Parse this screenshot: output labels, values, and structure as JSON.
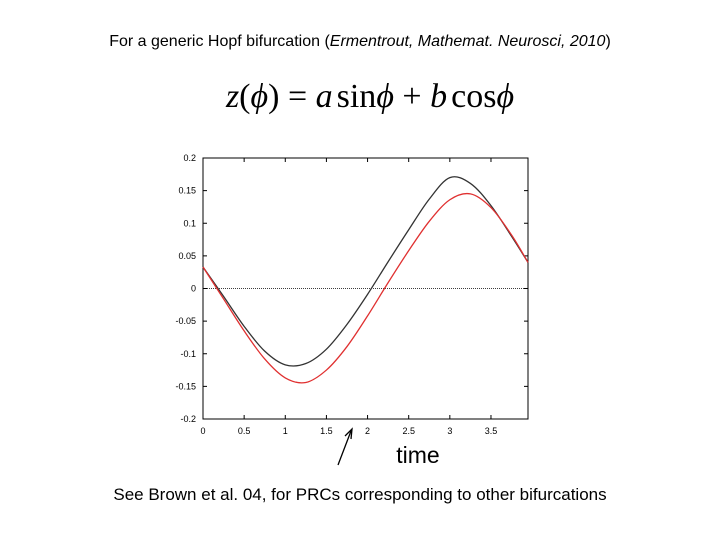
{
  "header": {
    "pre": "For a generic Hopf bifurcation (",
    "citation": "Ermentrout, Mathemat. Neurosci, 2010",
    "post": ")"
  },
  "formula": {
    "z": "z",
    "phi": "ϕ",
    "a": "a",
    "sin": "sin",
    "b": "b",
    "cos": "cos",
    "lparen": "(",
    "rparen": ")",
    "equals": " = ",
    "plus": " + "
  },
  "footer": "See Brown et al. 04, for PRCs corresponding to other bifurcations",
  "chart_data": {
    "type": "line",
    "xlabel": "time",
    "ylabel": "",
    "title": "",
    "xlim": [
      0,
      3.95
    ],
    "ylim": [
      -0.2,
      0.2
    ],
    "xticks": [
      "0",
      "0.5",
      "1",
      "1.5",
      "2",
      "2.5",
      "3",
      "3.5"
    ],
    "yticks": [
      "0.2",
      "0.15",
      "0.1",
      "0.05",
      "0",
      "-0.05",
      "-0.1",
      "-0.15",
      "-0.2"
    ],
    "zero_line": true,
    "series": [
      {
        "color": "#333333",
        "x": [
          0,
          0.25,
          0.5,
          0.75,
          1.0,
          1.25,
          1.5,
          1.75,
          2.0,
          2.25,
          2.5,
          2.75,
          3.0,
          3.25,
          3.5,
          3.75,
          3.95
        ],
        "y": [
          0.033,
          -0.012,
          -0.058,
          -0.096,
          -0.117,
          -0.115,
          -0.093,
          -0.055,
          -0.009,
          0.041,
          0.09,
          0.137,
          0.17,
          0.161,
          0.127,
          0.08,
          0.04
        ]
      },
      {
        "color": "#e03030",
        "x": [
          0,
          0.25,
          0.5,
          0.75,
          1.0,
          1.25,
          1.5,
          1.75,
          2.0,
          2.25,
          2.5,
          2.75,
          3.0,
          3.25,
          3.5,
          3.75,
          3.95
        ],
        "y": [
          0.033,
          -0.016,
          -0.065,
          -0.108,
          -0.137,
          -0.144,
          -0.125,
          -0.089,
          -0.042,
          0.009,
          0.058,
          0.103,
          0.136,
          0.145,
          0.124,
          0.082,
          0.04
        ]
      }
    ],
    "annotation": {
      "type": "arrow",
      "points_to_x": 2.0
    }
  }
}
